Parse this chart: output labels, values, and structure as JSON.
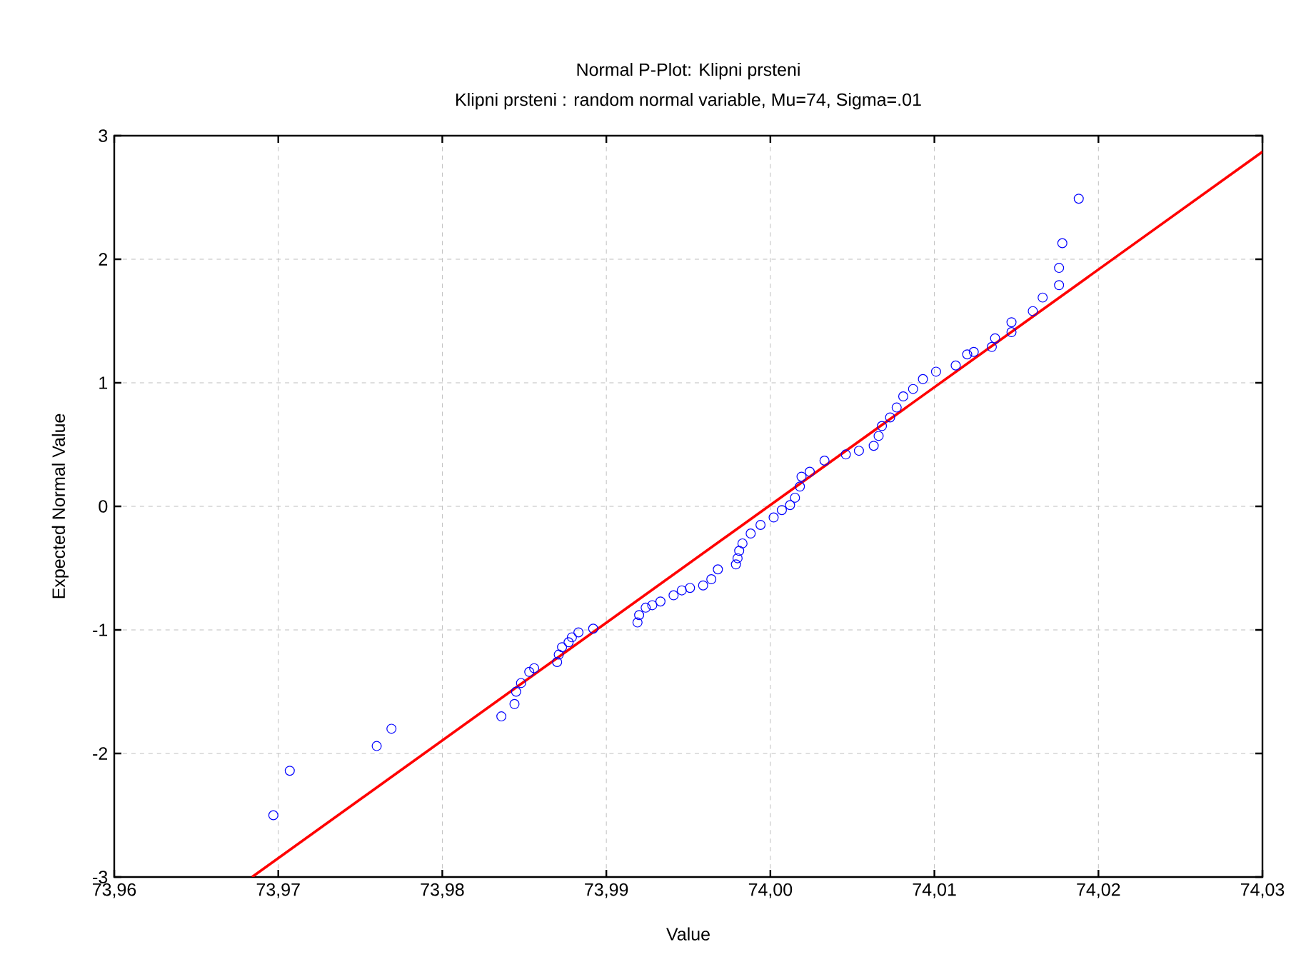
{
  "chart_data": {
    "type": "scatter",
    "title": "Normal P-Plot: Klipni prsteni",
    "subtitle": "Klipni prsteni : random normal variable, Mu=74, Sigma=.01",
    "xlabel": "Value",
    "ylabel": "Expected Normal Value",
    "xlim": [
      73.96,
      74.03
    ],
    "ylim": [
      -3,
      3
    ],
    "xticks": [
      {
        "value": 73.96,
        "label": "73,96"
      },
      {
        "value": 73.97,
        "label": "73,97"
      },
      {
        "value": 73.98,
        "label": "73,98"
      },
      {
        "value": 73.99,
        "label": "73,99"
      },
      {
        "value": 74.0,
        "label": "74,00"
      },
      {
        "value": 74.01,
        "label": "74,01"
      },
      {
        "value": 74.02,
        "label": "74,02"
      },
      {
        "value": 74.03,
        "label": "74,03"
      }
    ],
    "yticks": [
      -3,
      -2,
      -1,
      0,
      1,
      2,
      3
    ],
    "grid": true,
    "series": [
      {
        "marker": "circle",
        "color": "#0000ff",
        "x": [
          73.9697,
          73.9707,
          73.976,
          73.9769,
          73.9836,
          73.9844,
          73.9845,
          73.9848,
          73.9853,
          73.9856,
          73.987,
          73.9871,
          73.9873,
          73.9877,
          73.9879,
          73.9883,
          73.9892,
          73.9919,
          73.992,
          73.9924,
          73.9928,
          73.9933,
          73.9941,
          73.9946,
          73.9951,
          73.9959,
          73.9964,
          73.9968,
          73.9979,
          73.998,
          73.9981,
          73.9983,
          73.9988,
          73.9994,
          74.0002,
          74.0007,
          74.0012,
          74.0015,
          74.0018,
          74.0019,
          74.0024,
          74.0033,
          74.0046,
          74.0054,
          74.0063,
          74.0066,
          74.0068,
          74.0073,
          74.0077,
          74.0081,
          74.0087,
          74.0093,
          74.0101,
          74.0113,
          74.012,
          74.0124,
          74.0135,
          74.0137,
          74.0147,
          74.0147,
          74.016,
          74.0166,
          74.0176,
          74.0176,
          74.0178,
          74.0188
        ],
        "values": [
          -2.5,
          -2.14,
          -1.94,
          -1.8,
          -1.7,
          -1.6,
          -1.5,
          -1.43,
          -1.34,
          -1.31,
          -1.26,
          -1.2,
          -1.14,
          -1.1,
          -1.06,
          -1.02,
          -0.99,
          -0.94,
          -0.88,
          -0.82,
          -0.8,
          -0.77,
          -0.72,
          -0.68,
          -0.66,
          -0.64,
          -0.59,
          -0.51,
          -0.47,
          -0.42,
          -0.36,
          -0.3,
          -0.22,
          -0.15,
          -0.09,
          -0.03,
          0.01,
          0.07,
          0.16,
          0.24,
          0.28,
          0.37,
          0.42,
          0.45,
          0.49,
          0.57,
          0.65,
          0.72,
          0.8,
          0.89,
          0.95,
          1.03,
          1.09,
          1.14,
          1.23,
          1.25,
          1.29,
          1.36,
          1.41,
          1.49,
          1.58,
          1.69,
          1.79,
          1.93,
          2.13,
          2.49
        ]
      },
      {
        "type": "line",
        "color": "#ff0000",
        "line_style": "solid",
        "x": [
          73.9684,
          74.03
        ],
        "values": [
          -3,
          2.87
        ]
      }
    ]
  }
}
